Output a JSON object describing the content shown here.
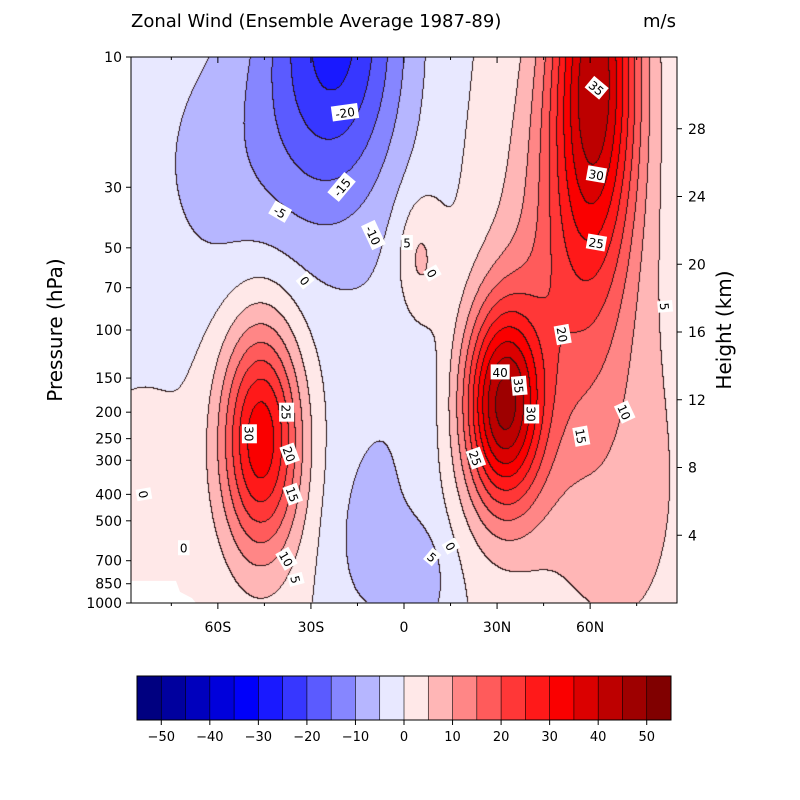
{
  "chart_data": {
    "type": "heatmap",
    "title": "Zonal Wind (Ensemble Average 1987-89)",
    "units": "m/s",
    "ylabel_left": "Pressure (hPa)",
    "ylabel_right": "Height (km)",
    "xlabel": "",
    "x_ticks": [
      "60S",
      "30S",
      "0",
      "30N",
      "60N"
    ],
    "x_tick_values": [
      -60,
      -30,
      0,
      30,
      60
    ],
    "xlim": [
      -88,
      88
    ],
    "y_scale": "log",
    "ylim": [
      1000,
      10
    ],
    "y_ticks": [
      10,
      30,
      50,
      70,
      100,
      150,
      200,
      250,
      300,
      400,
      500,
      700,
      850,
      1000
    ],
    "height_ticks_km": [
      4,
      8,
      12,
      16,
      20,
      24,
      28
    ],
    "colorbar_ticks": [
      -50,
      -40,
      -30,
      -20,
      -10,
      0,
      10,
      20,
      30,
      40,
      50
    ],
    "colorbar_range": [
      -55,
      55
    ],
    "colorbar_step": 5,
    "colorbar_position": "bottom",
    "contour_interval": 5,
    "jets": [
      {
        "name": "SH tropospheric jet",
        "lat": -46,
        "pressure_hPa": 250,
        "max_ms": 33
      },
      {
        "name": "NH tropospheric jet",
        "lat": 32,
        "pressure_hPa": 200,
        "max_ms": 43
      },
      {
        "name": "NH polar night jet",
        "lat": 62,
        "pressure_hPa": 12,
        "max_ms": 38
      },
      {
        "name": "SH stratospheric easterlies",
        "lat": -25,
        "pressure_hPa": 10,
        "max_ms": -24
      },
      {
        "name": "Equatorial westerly patch",
        "lat": 5,
        "pressure_hPa": 55,
        "max_ms": 7
      },
      {
        "name": "Surface easterlies",
        "lat": 5,
        "pressure_hPa": 800,
        "max_ms": -7
      }
    ],
    "contour_labels": [
      {
        "text": "-20",
        "lat": -19,
        "p": 16,
        "rot": -8
      },
      {
        "text": "-15",
        "lat": -20,
        "p": 30,
        "rot": -50
      },
      {
        "text": "-10",
        "lat": -10,
        "p": 45,
        "rot": 65
      },
      {
        "text": "-5",
        "lat": -40,
        "p": 37,
        "rot": 30
      },
      {
        "text": "0",
        "lat": -32,
        "p": 66,
        "rot": 50
      },
      {
        "text": "5",
        "lat": 1,
        "p": 48,
        "rot": 0
      },
      {
        "text": "0",
        "lat": 9,
        "p": 62,
        "rot": 60
      },
      {
        "text": "35",
        "lat": 62,
        "p": 13,
        "rot": 40
      },
      {
        "text": "30",
        "lat": 62,
        "p": 27,
        "rot": 10
      },
      {
        "text": "25",
        "lat": 62,
        "p": 48,
        "rot": 10
      },
      {
        "text": "20",
        "lat": 51,
        "p": 104,
        "rot": 80
      },
      {
        "text": "40",
        "lat": 31,
        "p": 143,
        "rot": 0
      },
      {
        "text": "35",
        "lat": 37,
        "p": 160,
        "rot": 85
      },
      {
        "text": "30",
        "lat": 41,
        "p": 203,
        "rot": 90
      },
      {
        "text": "25",
        "lat": 23,
        "p": 295,
        "rot": 70
      },
      {
        "text": "15",
        "lat": 57,
        "p": 245,
        "rot": 80
      },
      {
        "text": "10",
        "lat": 71,
        "p": 200,
        "rot": 65
      },
      {
        "text": "5",
        "lat": 84,
        "p": 82,
        "rot": 85
      },
      {
        "text": "25",
        "lat": -38,
        "p": 200,
        "rot": 90
      },
      {
        "text": "30",
        "lat": -50,
        "p": 240,
        "rot": 90
      },
      {
        "text": "20",
        "lat": -37,
        "p": 285,
        "rot": 70
      },
      {
        "text": "15",
        "lat": -36,
        "p": 400,
        "rot": 70
      },
      {
        "text": "10",
        "lat": -38,
        "p": 690,
        "rot": 60
      },
      {
        "text": "5",
        "lat": -35,
        "p": 820,
        "rot": 75
      },
      {
        "text": "0",
        "lat": -71,
        "p": 630,
        "rot": 0
      },
      {
        "text": "0",
        "lat": -84,
        "p": 400,
        "rot": 80
      },
      {
        "text": "5",
        "lat": 9,
        "p": 680,
        "rot": 40
      },
      {
        "text": "0",
        "lat": 15,
        "p": 620,
        "rot": 60
      }
    ]
  }
}
